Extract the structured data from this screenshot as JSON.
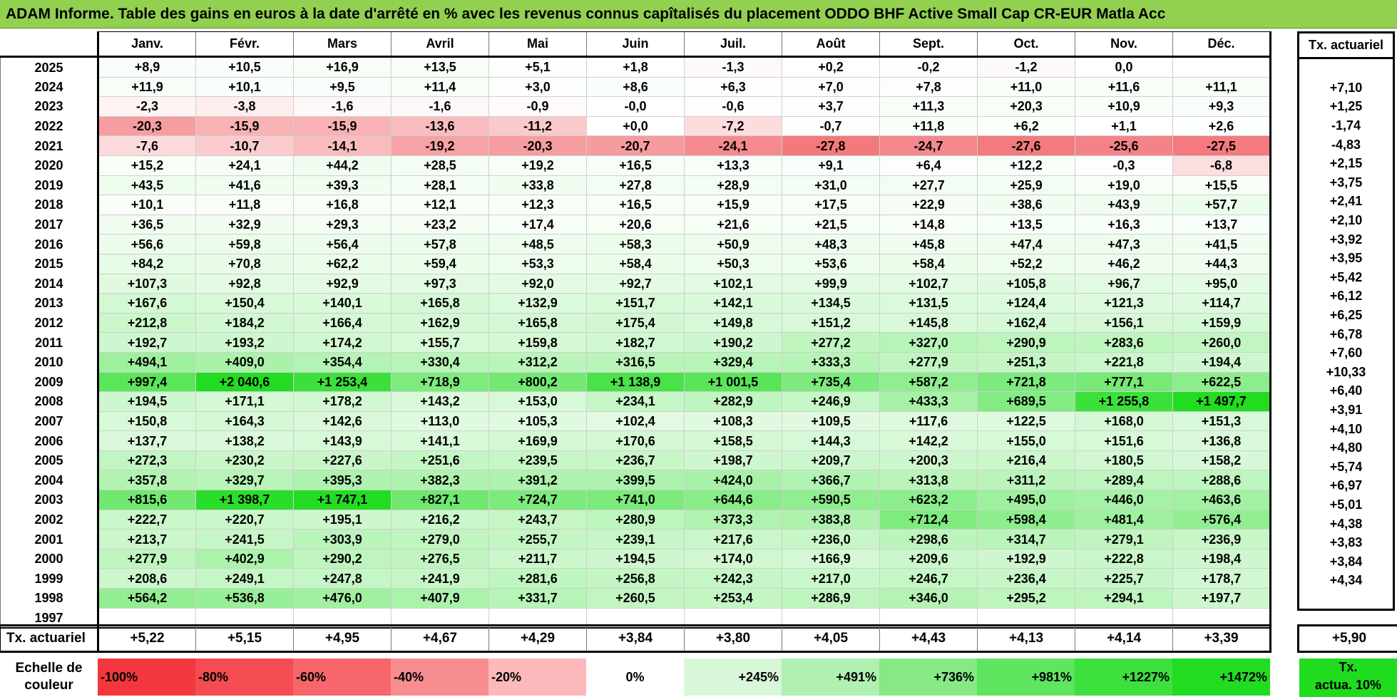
{
  "title": "ADAM Informe. Table des gains en euros à la date d'arrêté en % avec les revenus connus capîtalisés du placement ODDO BHF Active Small Cap CR-EUR Matla Acc",
  "months": [
    "Janv.",
    "Févr.",
    "Mars",
    "Avril",
    "Mai",
    "Juin",
    "Juil.",
    "Août",
    "Sept.",
    "Oct.",
    "Nov.",
    "Déc."
  ],
  "actuarial_header": "Tx. actuariel",
  "rows": [
    {
      "year": "2025",
      "values": [
        "+8,9",
        "+10,5",
        "+16,9",
        "+13,5",
        "+5,1",
        "+1,8",
        "-1,3",
        "+0,2",
        "-0,2",
        "-1,2",
        "0,0",
        ""
      ],
      "actuarial": ""
    },
    {
      "year": "2024",
      "values": [
        "+11,9",
        "+10,1",
        "+9,5",
        "+11,4",
        "+3,0",
        "+8,6",
        "+6,3",
        "+7,0",
        "+7,8",
        "+11,0",
        "+11,6",
        "+11,1"
      ],
      "actuarial": "+7,10"
    },
    {
      "year": "2023",
      "values": [
        "-2,3",
        "-3,8",
        "-1,6",
        "-1,6",
        "-0,9",
        "-0,0",
        "-0,6",
        "+3,7",
        "+11,3",
        "+20,3",
        "+10,9",
        "+9,3"
      ],
      "actuarial": "+1,25"
    },
    {
      "year": "2022",
      "values": [
        "-20,3",
        "-15,9",
        "-15,9",
        "-13,6",
        "-11,2",
        "+0,0",
        "-7,2",
        "-0,7",
        "+11,8",
        "+6,2",
        "+1,1",
        "+2,6"
      ],
      "actuarial": "-1,74"
    },
    {
      "year": "2021",
      "values": [
        "-7,6",
        "-10,7",
        "-14,1",
        "-19,2",
        "-20,3",
        "-20,7",
        "-24,1",
        "-27,8",
        "-24,7",
        "-27,6",
        "-25,6",
        "-27,5"
      ],
      "actuarial": "-4,83"
    },
    {
      "year": "2020",
      "values": [
        "+15,2",
        "+24,1",
        "+44,2",
        "+28,5",
        "+19,2",
        "+16,5",
        "+13,3",
        "+9,1",
        "+6,4",
        "+12,2",
        "-0,3",
        "-6,8"
      ],
      "actuarial": "+2,15"
    },
    {
      "year": "2019",
      "values": [
        "+43,5",
        "+41,6",
        "+39,3",
        "+28,1",
        "+33,8",
        "+27,8",
        "+28,9",
        "+31,0",
        "+27,7",
        "+25,9",
        "+19,0",
        "+15,5"
      ],
      "actuarial": "+3,75"
    },
    {
      "year": "2018",
      "values": [
        "+10,1",
        "+11,8",
        "+16,8",
        "+12,1",
        "+12,3",
        "+16,5",
        "+15,9",
        "+17,5",
        "+22,9",
        "+38,6",
        "+43,9",
        "+57,7"
      ],
      "actuarial": "+2,41"
    },
    {
      "year": "2017",
      "values": [
        "+36,5",
        "+32,9",
        "+29,3",
        "+23,2",
        "+17,4",
        "+20,6",
        "+21,6",
        "+21,5",
        "+14,8",
        "+13,5",
        "+16,3",
        "+13,7"
      ],
      "actuarial": "+2,10"
    },
    {
      "year": "2016",
      "values": [
        "+56,6",
        "+59,8",
        "+56,4",
        "+57,8",
        "+48,5",
        "+58,3",
        "+50,9",
        "+48,3",
        "+45,8",
        "+47,4",
        "+47,3",
        "+41,5"
      ],
      "actuarial": "+3,92"
    },
    {
      "year": "2015",
      "values": [
        "+84,2",
        "+70,8",
        "+62,2",
        "+59,4",
        "+53,3",
        "+58,4",
        "+50,3",
        "+53,6",
        "+58,4",
        "+52,2",
        "+46,2",
        "+44,3"
      ],
      "actuarial": "+3,95"
    },
    {
      "year": "2014",
      "values": [
        "+107,3",
        "+92,8",
        "+92,9",
        "+97,3",
        "+92,0",
        "+92,7",
        "+102,1",
        "+99,9",
        "+102,7",
        "+105,8",
        "+96,7",
        "+95,0"
      ],
      "actuarial": "+5,42"
    },
    {
      "year": "2013",
      "values": [
        "+167,6",
        "+150,4",
        "+140,1",
        "+165,8",
        "+132,9",
        "+151,7",
        "+142,1",
        "+134,5",
        "+131,5",
        "+124,4",
        "+121,3",
        "+114,7"
      ],
      "actuarial": "+6,12"
    },
    {
      "year": "2012",
      "values": [
        "+212,8",
        "+184,2",
        "+166,4",
        "+162,9",
        "+165,8",
        "+175,4",
        "+149,8",
        "+151,2",
        "+145,8",
        "+162,4",
        "+156,1",
        "+159,9"
      ],
      "actuarial": "+6,25"
    },
    {
      "year": "2011",
      "values": [
        "+192,7",
        "+193,2",
        "+174,2",
        "+155,7",
        "+159,8",
        "+182,7",
        "+190,2",
        "+277,2",
        "+327,0",
        "+290,9",
        "+283,6",
        "+260,0"
      ],
      "actuarial": "+6,78"
    },
    {
      "year": "2010",
      "values": [
        "+494,1",
        "+409,0",
        "+354,4",
        "+330,4",
        "+312,2",
        "+316,5",
        "+329,4",
        "+333,3",
        "+277,9",
        "+251,3",
        "+221,8",
        "+194,4"
      ],
      "actuarial": "+7,60"
    },
    {
      "year": "2009",
      "values": [
        "+997,4",
        "+2 040,6",
        "+1 253,4",
        "+718,9",
        "+800,2",
        "+1 138,9",
        "+1 001,5",
        "+735,4",
        "+587,2",
        "+721,8",
        "+777,1",
        "+622,5"
      ],
      "actuarial": "+10,33"
    },
    {
      "year": "2008",
      "values": [
        "+194,5",
        "+171,1",
        "+178,2",
        "+143,2",
        "+153,0",
        "+234,1",
        "+282,9",
        "+246,9",
        "+433,3",
        "+689,5",
        "+1 255,8",
        "+1 497,7"
      ],
      "actuarial": "+6,40"
    },
    {
      "year": "2007",
      "values": [
        "+150,8",
        "+164,3",
        "+142,6",
        "+113,0",
        "+105,3",
        "+102,4",
        "+108,3",
        "+109,5",
        "+117,6",
        "+122,5",
        "+168,0",
        "+151,3"
      ],
      "actuarial": "+3,91"
    },
    {
      "year": "2006",
      "values": [
        "+137,7",
        "+138,2",
        "+143,9",
        "+141,1",
        "+169,9",
        "+170,6",
        "+158,5",
        "+144,3",
        "+142,2",
        "+155,0",
        "+151,6",
        "+136,8"
      ],
      "actuarial": "+4,10"
    },
    {
      "year": "2005",
      "values": [
        "+272,3",
        "+230,2",
        "+227,6",
        "+251,6",
        "+239,5",
        "+236,7",
        "+198,7",
        "+209,7",
        "+200,3",
        "+216,4",
        "+180,5",
        "+158,2"
      ],
      "actuarial": "+4,80"
    },
    {
      "year": "2004",
      "values": [
        "+357,8",
        "+329,7",
        "+395,3",
        "+382,3",
        "+391,2",
        "+399,5",
        "+424,0",
        "+366,7",
        "+313,8",
        "+311,2",
        "+289,4",
        "+288,6"
      ],
      "actuarial": "+5,74"
    },
    {
      "year": "2003",
      "values": [
        "+815,6",
        "+1 398,7",
        "+1 747,1",
        "+827,1",
        "+724,7",
        "+741,0",
        "+644,6",
        "+590,5",
        "+623,2",
        "+495,0",
        "+446,0",
        "+463,6"
      ],
      "actuarial": "+6,97"
    },
    {
      "year": "2002",
      "values": [
        "+222,7",
        "+220,7",
        "+195,1",
        "+216,2",
        "+243,7",
        "+280,9",
        "+373,3",
        "+383,8",
        "+712,4",
        "+598,4",
        "+481,4",
        "+576,4"
      ],
      "actuarial": "+5,01"
    },
    {
      "year": "2001",
      "values": [
        "+213,7",
        "+241,5",
        "+303,9",
        "+279,0",
        "+255,7",
        "+239,1",
        "+217,6",
        "+236,0",
        "+298,6",
        "+314,7",
        "+279,1",
        "+236,9"
      ],
      "actuarial": "+4,38"
    },
    {
      "year": "2000",
      "values": [
        "+277,9",
        "+402,9",
        "+290,2",
        "+276,5",
        "+211,7",
        "+194,5",
        "+174,0",
        "+166,9",
        "+209,6",
        "+192,9",
        "+222,8",
        "+198,4"
      ],
      "actuarial": "+3,83"
    },
    {
      "year": "1999",
      "values": [
        "+208,6",
        "+249,1",
        "+247,8",
        "+241,9",
        "+281,6",
        "+256,8",
        "+242,3",
        "+217,0",
        "+246,7",
        "+236,4",
        "+225,7",
        "+178,7"
      ],
      "actuarial": "+3,84"
    },
    {
      "year": "1998",
      "values": [
        "+564,2",
        "+536,8",
        "+476,0",
        "+407,9",
        "+331,7",
        "+260,5",
        "+253,4",
        "+286,9",
        "+346,0",
        "+295,2",
        "+294,1",
        "+197,7"
      ],
      "actuarial": "+4,34"
    },
    {
      "year": "1997",
      "values": [
        "",
        "",
        "",
        "",
        "",
        "",
        "",
        "",
        "",
        "",
        "",
        ""
      ],
      "actuarial": ""
    }
  ],
  "totals": {
    "label": "Tx. actuariel",
    "values": [
      "+5,22",
      "+5,15",
      "+4,95",
      "+4,67",
      "+4,29",
      "+3,84",
      "+3,80",
      "+4,05",
      "+4,43",
      "+4,13",
      "+4,14",
      "+3,39"
    ],
    "actuarial": "+5,90"
  },
  "color_scale": {
    "label_line1": "Echelle de",
    "label_line2": "couleur",
    "steps": [
      {
        "label": "-100%",
        "color": "#f2383d"
      },
      {
        "label": "-80%",
        "color": "#f44c52"
      },
      {
        "label": "-60%",
        "color": "#f6666b"
      },
      {
        "label": "-40%",
        "color": "#f88d90"
      },
      {
        "label": "-20%",
        "color": "#fbb9bb"
      },
      {
        "label": "0%",
        "color": "#ffffff"
      },
      {
        "label": "+245%",
        "color": "#d8f7d8"
      },
      {
        "label": "+491%",
        "color": "#b0f0b0"
      },
      {
        "label": "+736%",
        "color": "#86e986"
      },
      {
        "label": "+981%",
        "color": "#5fe55f"
      },
      {
        "label": "+1227%",
        "color": "#3ee03e"
      },
      {
        "label": "+1472%",
        "color": "#22dc22"
      }
    ],
    "act_line1": "Tx.",
    "act_line2": "actua. 10%",
    "act_color": "#1fdc1f"
  },
  "accent_title_color": "#92d050"
}
